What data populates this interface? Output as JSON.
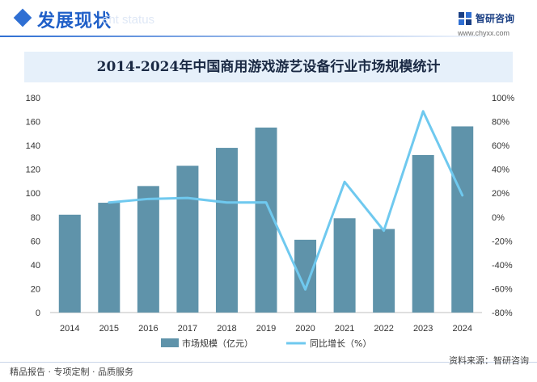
{
  "header": {
    "section_title": "发展现状",
    "section_subtitle": "ent status",
    "brand_name": "智研咨询",
    "brand_site": "www.chyxx.com",
    "accent_color": "#2f6fd3"
  },
  "footer": {
    "left_text": "精品报告 · 专项定制 · 品质服务",
    "source_text": "资料来源：智研咨询"
  },
  "chart_data": {
    "type": "bar",
    "title": "2014-2024年中国商用游戏游艺设备行业市场规模统计",
    "categories": [
      "2014",
      "2015",
      "2016",
      "2017",
      "2018",
      "2019",
      "2020",
      "2021",
      "2022",
      "2023",
      "2024"
    ],
    "series": [
      {
        "name": "市场规模（亿元）",
        "type": "bar",
        "axis": "left",
        "color": "#5f93aa",
        "values": [
          82,
          92,
          106,
          123,
          138,
          155,
          61,
          79,
          70,
          132,
          156
        ]
      },
      {
        "name": "同比增长（%）",
        "type": "line",
        "axis": "right",
        "color": "#6fc9ef",
        "values": [
          null,
          12.2,
          15.2,
          16.0,
          12.2,
          12.3,
          -60.6,
          29.5,
          -11.4,
          88.6,
          18.2
        ]
      }
    ],
    "y_left": {
      "min": 0,
      "max": 180,
      "step": 20,
      "ticks": [
        "0",
        "20",
        "40",
        "60",
        "80",
        "100",
        "120",
        "140",
        "160",
        "180"
      ]
    },
    "y_right": {
      "min": -80,
      "max": 100,
      "step": 20,
      "ticks": [
        "-80%",
        "-60%",
        "-40%",
        "-20%",
        "0%",
        "20%",
        "40%",
        "60%",
        "80%",
        "100%"
      ]
    },
    "grid": false,
    "legend_position": "bottom-center"
  }
}
